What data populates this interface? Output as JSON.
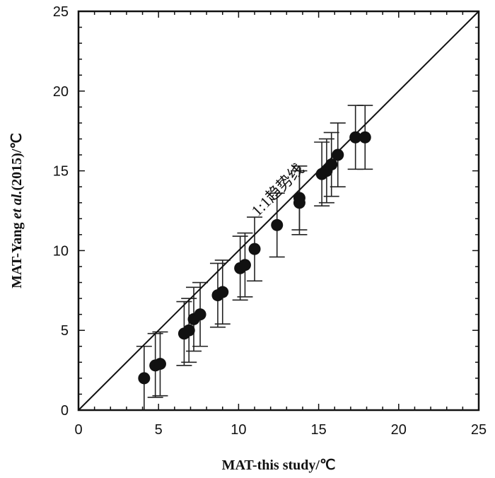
{
  "chart_data": {
    "type": "scatter",
    "title": "",
    "xlabel": "MAT-this study/℃",
    "ylabel_parts": [
      {
        "text": "MAT-Yang ",
        "italic": false
      },
      {
        "text": "et al.",
        "italic": true
      },
      {
        "text": "(2015)/℃",
        "italic": false
      }
    ],
    "xlim": [
      0,
      25
    ],
    "ylim": [
      0,
      25
    ],
    "xticks": [
      0,
      5,
      10,
      15,
      20,
      25
    ],
    "yticks": [
      0,
      5,
      10,
      15,
      20,
      25
    ],
    "xtick_labels": [
      "0",
      "5",
      "10",
      "15",
      "20",
      "25"
    ],
    "ytick_labels": [
      "0",
      "5",
      "10",
      "15",
      "20",
      "25"
    ],
    "grid": false,
    "reference_line": {
      "label": "1:1趋势线",
      "slope": 1,
      "intercept": 0
    },
    "series": [
      {
        "name": "MAT",
        "points": [
          {
            "x": 4.1,
            "y": 2.0,
            "err_low": 2.0,
            "err_high": 2.0
          },
          {
            "x": 4.8,
            "y": 2.8,
            "err_low": 2.0,
            "err_high": 2.0
          },
          {
            "x": 5.1,
            "y": 2.9,
            "err_low": 2.0,
            "err_high": 2.0
          },
          {
            "x": 6.6,
            "y": 4.8,
            "err_low": 2.0,
            "err_high": 2.0
          },
          {
            "x": 6.9,
            "y": 5.0,
            "err_low": 2.0,
            "err_high": 2.0
          },
          {
            "x": 7.2,
            "y": 5.7,
            "err_low": 2.0,
            "err_high": 2.0
          },
          {
            "x": 7.6,
            "y": 6.0,
            "err_low": 2.0,
            "err_high": 2.0
          },
          {
            "x": 8.7,
            "y": 7.2,
            "err_low": 2.0,
            "err_high": 2.0
          },
          {
            "x": 9.0,
            "y": 7.4,
            "err_low": 2.0,
            "err_high": 2.0
          },
          {
            "x": 10.1,
            "y": 8.9,
            "err_low": 2.0,
            "err_high": 2.0
          },
          {
            "x": 10.4,
            "y": 9.1,
            "err_low": 2.0,
            "err_high": 2.0
          },
          {
            "x": 11.0,
            "y": 10.1,
            "err_low": 2.0,
            "err_high": 2.0
          },
          {
            "x": 12.4,
            "y": 11.6,
            "err_low": 2.0,
            "err_high": 2.0
          },
          {
            "x": 13.8,
            "y": 13.0,
            "err_low": 2.0,
            "err_high": 2.0
          },
          {
            "x": 13.8,
            "y": 13.3,
            "err_low": 2.0,
            "err_high": 2.0
          },
          {
            "x": 15.2,
            "y": 14.8,
            "err_low": 2.0,
            "err_high": 2.0
          },
          {
            "x": 15.5,
            "y": 15.0,
            "err_low": 2.0,
            "err_high": 2.0
          },
          {
            "x": 15.8,
            "y": 15.4,
            "err_low": 2.0,
            "err_high": 2.0
          },
          {
            "x": 16.2,
            "y": 16.0,
            "err_low": 2.0,
            "err_high": 2.0
          },
          {
            "x": 17.3,
            "y": 17.1,
            "err_low": 2.0,
            "err_high": 2.0
          },
          {
            "x": 17.9,
            "y": 17.1,
            "err_low": 2.0,
            "err_high": 2.0
          }
        ]
      }
    ]
  }
}
